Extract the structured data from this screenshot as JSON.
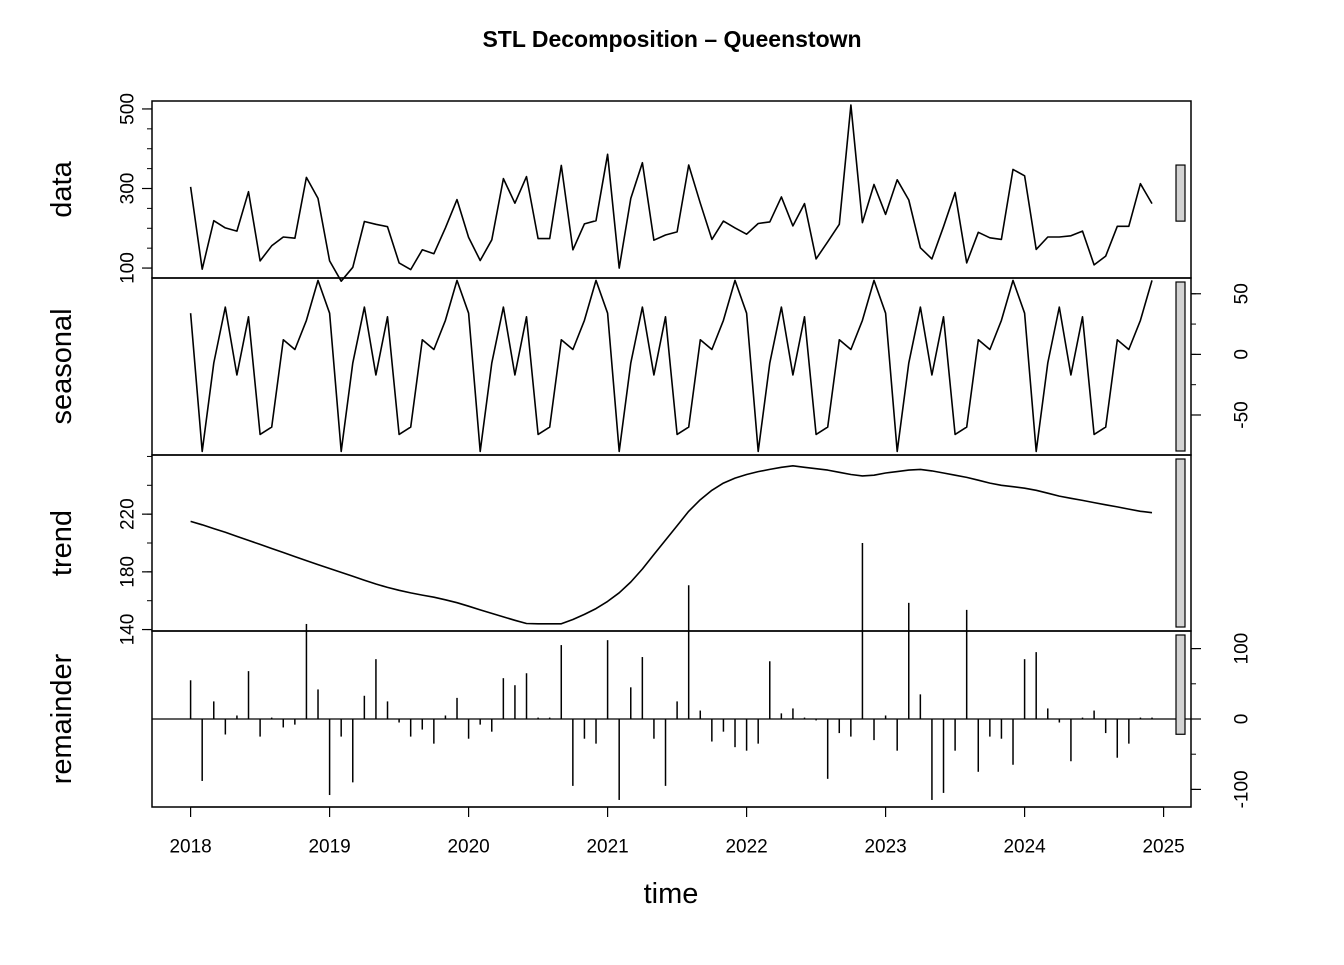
{
  "chart_data": {
    "type": "line",
    "title": "STL Decomposition – Queenstown",
    "xlabel": "time",
    "x_ticks": [
      "2018",
      "2019",
      "2020",
      "2021",
      "2022",
      "2023",
      "2024",
      "2025"
    ],
    "start": 2018,
    "frequency": 12,
    "panels": [
      {
        "name": "data",
        "ylabel": "data",
        "axis_side": "left",
        "type": "line",
        "ylim": [
          75,
          520
        ],
        "yticks": [
          100,
          300,
          500
        ],
        "minor_yticks": [
          100,
          150,
          200,
          250,
          300,
          350,
          400,
          450,
          500
        ],
        "values": [
          304,
          97,
          219,
          201,
          193,
          292,
          118,
          156,
          178,
          175,
          328,
          275,
          118,
          67,
          102,
          217,
          210,
          204,
          113,
          96,
          146,
          136,
          201,
          272,
          177,
          119,
          171,
          325,
          263,
          330,
          174,
          174,
          358,
          146,
          211,
          219,
          386,
          100,
          275,
          365,
          170,
          183,
          191,
          359,
          263,
          172,
          218,
          201,
          185,
          212,
          216,
          279,
          206,
          262,
          123,
          166,
          210,
          510,
          214,
          310,
          235,
          322,
          271,
          151,
          123,
          204,
          290,
          113,
          190,
          176,
          172,
          348,
          332,
          147,
          178,
          178,
          181,
          193,
          108,
          130,
          205,
          205,
          312,
          262
        ]
      },
      {
        "name": "seasonal",
        "ylabel": "seasonal",
        "axis_side": "right",
        "type": "line",
        "ylim": [
          -83,
          63
        ],
        "yticks": [
          -50,
          0,
          50
        ],
        "minor_yticks": [
          -50,
          -25,
          0,
          25,
          50
        ],
        "values": [
          34,
          -80,
          -7,
          39,
          -17,
          31,
          -66,
          -60,
          12,
          4,
          28,
          61,
          34,
          -80,
          -7,
          39,
          -17,
          31,
          -66,
          -60,
          12,
          4,
          28,
          61,
          34,
          -80,
          -7,
          39,
          -17,
          31,
          -66,
          -60,
          12,
          4,
          28,
          61,
          34,
          -80,
          -7,
          39,
          -17,
          31,
          -66,
          -60,
          12,
          4,
          28,
          61,
          34,
          -80,
          -7,
          39,
          -17,
          31,
          -66,
          -60,
          12,
          4,
          28,
          61,
          34,
          -80,
          -7,
          39,
          -17,
          31,
          -66,
          -60,
          12,
          4,
          28,
          61,
          34,
          -80,
          -7,
          39,
          -17,
          31,
          -66,
          -60,
          12,
          4,
          28,
          61
        ]
      },
      {
        "name": "trend",
        "ylabel": "trend",
        "axis_side": "left",
        "type": "line",
        "ylim": [
          139,
          261
        ],
        "yticks": [
          140,
          180,
          220
        ],
        "minor_yticks": [
          140,
          160,
          180,
          200,
          220,
          240,
          260
        ],
        "values": [
          215.0,
          212.6,
          210.0,
          207.4,
          204.6,
          201.8,
          199.0,
          196.2,
          193.4,
          190.6,
          187.8,
          185.0,
          182.3,
          179.6,
          176.9,
          174.2,
          171.6,
          169.2,
          167.2,
          165.4,
          163.9,
          162.4,
          160.6,
          158.6,
          156.2,
          153.6,
          151.2,
          148.8,
          146.4,
          144.2,
          144.0,
          144.0,
          144.0,
          147.0,
          150.5,
          154.5,
          159.5,
          165.5,
          173.0,
          182.0,
          192.0,
          202.0,
          212.0,
          222.0,
          230.0,
          236.5,
          241.5,
          245.0,
          247.5,
          249.5,
          251.0,
          252.5,
          253.5,
          252.5,
          251.5,
          250.5,
          249.0,
          247.5,
          246.5,
          247.0,
          248.5,
          249.5,
          250.5,
          251.0,
          250.0,
          248.5,
          247.0,
          245.5,
          243.5,
          241.5,
          240.0,
          239.0,
          238.0,
          236.5,
          234.5,
          232.5,
          231.0,
          229.5,
          228.0,
          226.5,
          225.0,
          223.5,
          222.0,
          221.0
        ]
      },
      {
        "name": "remainder",
        "ylabel": "remainder",
        "axis_side": "right",
        "type": "bar",
        "ylim": [
          -125,
          125
        ],
        "yticks": [
          -100,
          0,
          100
        ],
        "minor_yticks": [
          -100,
          -50,
          0,
          50,
          100
        ],
        "values": [
          55,
          -88,
          25,
          -22,
          5,
          68,
          -25,
          2,
          -12,
          -8,
          135,
          42,
          -108,
          -25,
          -90,
          33,
          85,
          25,
          -5,
          -25,
          -15,
          -35,
          5,
          30,
          -28,
          -8,
          -18,
          58,
          48,
          65,
          2,
          2,
          105,
          -95,
          -28,
          -35,
          112,
          -115,
          45,
          88,
          -28,
          -95,
          25,
          190,
          12,
          -32,
          -18,
          -40,
          -45,
          -35,
          82,
          8,
          15,
          2,
          -2,
          -85,
          -20,
          -25,
          250,
          -30,
          5,
          -45,
          165,
          35,
          -115,
          -105,
          -45,
          155,
          -75,
          -25,
          -28,
          -65,
          85,
          95,
          15,
          -5,
          -60,
          2,
          12,
          -20,
          -55,
          -35,
          2,
          2
        ]
      }
    ],
    "rows_note": "",
    "range_bar_color": "#d3d3d3",
    "line_color": "#000000"
  }
}
